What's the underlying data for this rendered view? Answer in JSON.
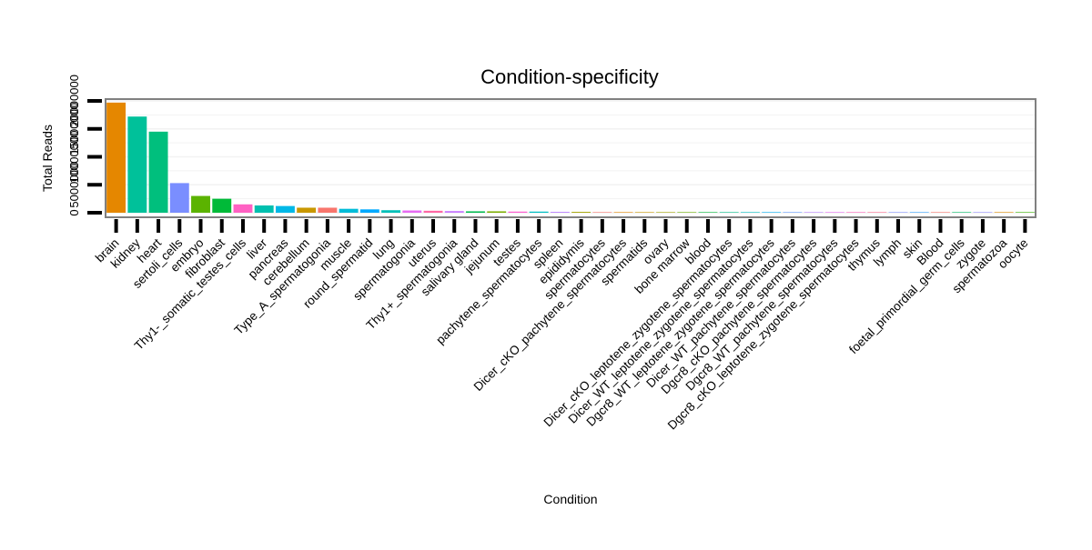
{
  "chart_data": {
    "type": "bar",
    "title": "Condition-specificity",
    "xlabel": "Condition",
    "ylabel": "Total Reads",
    "ylim": [
      0,
      20000000
    ],
    "yticks": [
      0,
      5000000,
      10000000,
      15000000,
      20000000
    ],
    "ytick_labels": [
      "0",
      "5000000",
      "10000000",
      "15000000",
      "20000000"
    ],
    "grid": true,
    "categories": [
      "brain",
      "kidney",
      "heart",
      "sertoli_cells",
      "embryo",
      "fibroblast",
      "Thy1-_somatic_testes_cells",
      "liver",
      "pancreas",
      "cerebellum",
      "Type_A_spermatogonia",
      "muscle",
      "round_spermatid",
      "lung",
      "spermatogonia",
      "uterus",
      "Thy1+_spermatogonia",
      "salivary gland",
      "jejunum",
      "testes",
      "pachytene_spermatocytes",
      "spleen",
      "epididymis",
      "spermatocytes",
      "Dicer_cKO_pachytene_spermatocytes",
      "spermatids",
      "ovary",
      "bone marrow",
      "blood",
      "Dicer_cKO_leptotene_zygotene_spermatocytes",
      "Dicer_WT_leptotene_zygotene_spermatocytes",
      "Dgcr8_WT_leptotene_zygotene_spermatocytes",
      "Dicer_WT_pachytene_spermatocytes",
      "Dgcr8_cKO_pachytene_spermatocytes",
      "Dgcr8_WT_pachytene_spermatocytes",
      "Dgcr8_cKO_leptotene_zygotene_spermatocytes",
      "thymus",
      "lymph",
      "skin",
      "Blood",
      "foetal_primordial_germ_cells",
      "zygote",
      "spermatozoa",
      "oocyte"
    ],
    "values": [
      19700000,
      17200000,
      14500000,
      5300000,
      3000000,
      2500000,
      1500000,
      1300000,
      1200000,
      900000,
      900000,
      700000,
      600000,
      450000,
      400000,
      350000,
      300000,
      250000,
      250000,
      200000,
      200000,
      150000,
      150000,
      60000,
      50000,
      40000,
      30000,
      30000,
      30000,
      20000,
      20000,
      20000,
      20000,
      20000,
      20000,
      20000,
      15000,
      10000,
      10000,
      10000,
      5000,
      5000,
      5000,
      5000
    ],
    "colors": [
      "#E58700",
      "#00C19A",
      "#00BF7D",
      "#7A8EFF",
      "#5BB300",
      "#00BA38",
      "#FF61C3",
      "#00C0AF",
      "#00B8E7",
      "#C99800",
      "#F8766D",
      "#00BCD8",
      "#00A9FF",
      "#00C0B8",
      "#E76BF3",
      "#FF67A4",
      "#C77CFF",
      "#00BB4E",
      "#7CAE00",
      "#FD61D1",
      "#00BFC4",
      "#B983FF",
      "#A3A500",
      "#F8766D",
      "#E58700",
      "#C99800",
      "#A3A500",
      "#6BB100",
      "#00BA38",
      "#00C08B",
      "#00BFC4",
      "#00B0F6",
      "#619CFF",
      "#B983FF",
      "#E76BF3",
      "#FF62BC",
      "#FF6C91",
      "#8494FF",
      "#35A2FF",
      "#F8766D",
      "#00BE67",
      "#9590FF",
      "#DE8C00",
      "#39B600"
    ]
  }
}
